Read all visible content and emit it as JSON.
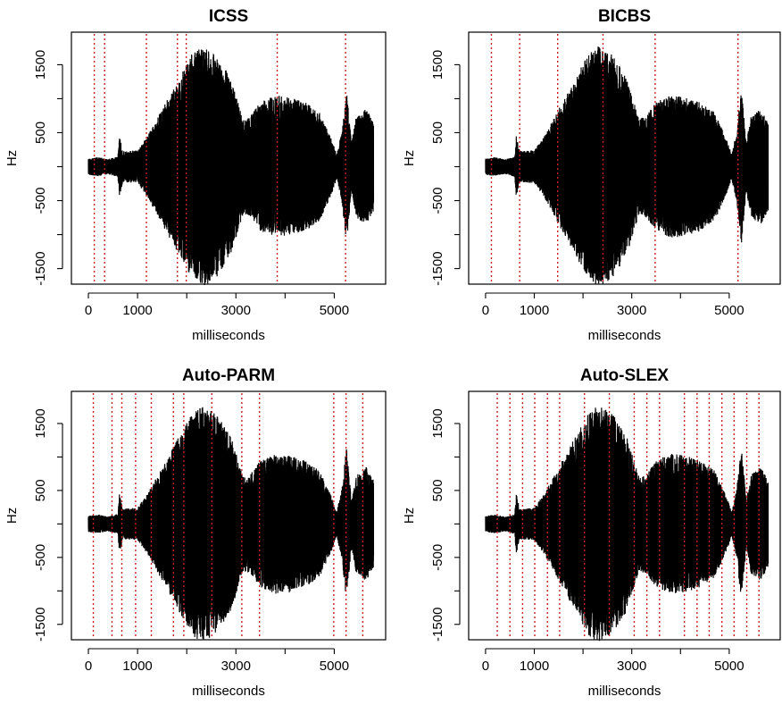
{
  "chart_data": [
    {
      "type": "line",
      "title": "ICSS",
      "xlabel": "milliseconds",
      "ylabel": "Hz",
      "xticks": [
        0,
        1000,
        3000,
        5000
      ],
      "yticks": [
        -1500,
        -500,
        500,
        1500
      ],
      "xlim": [
        -200,
        5900
      ],
      "ylim": [
        -1650,
        1900
      ],
      "grid": false,
      "changepoints": [
        120,
        330,
        1180,
        1810,
        1990,
        3840,
        5230
      ]
    },
    {
      "type": "line",
      "title": "BICBS",
      "xlabel": "milliseconds",
      "ylabel": "Hz",
      "xticks": [
        0,
        1000,
        3000,
        5000
      ],
      "yticks": [
        -1500,
        -500,
        500,
        1500
      ],
      "xlim": [
        -200,
        5900
      ],
      "ylim": [
        -1650,
        1900
      ],
      "grid": false,
      "changepoints": [
        120,
        700,
        1480,
        2410,
        3480,
        5180
      ]
    },
    {
      "type": "line",
      "title": "Auto-PARM",
      "xlabel": "milliseconds",
      "ylabel": "Hz",
      "xticks": [
        0,
        1000,
        3000,
        5000
      ],
      "yticks": [
        -1500,
        -500,
        500,
        1500
      ],
      "xlim": [
        -200,
        5900
      ],
      "ylim": [
        -1650,
        1900
      ],
      "grid": false,
      "changepoints": [
        100,
        480,
        680,
        960,
        1280,
        1730,
        1940,
        2510,
        3120,
        3480,
        4990,
        5240,
        5580
      ]
    },
    {
      "type": "line",
      "title": "Auto-SLEX",
      "xlabel": "milliseconds",
      "ylabel": "Hz",
      "xticks": [
        0,
        1000,
        3000,
        5000
      ],
      "yticks": [
        -1500,
        -500,
        500,
        1500
      ],
      "xlim": [
        -200,
        5900
      ],
      "ylim": [
        -1650,
        1900
      ],
      "grid": false,
      "changepoints": [
        240,
        500,
        760,
        1010,
        1270,
        1520,
        2030,
        2540,
        3050,
        3310,
        3570,
        4080,
        4340,
        4590,
        4850,
        5100,
        5360,
        5610
      ]
    }
  ]
}
